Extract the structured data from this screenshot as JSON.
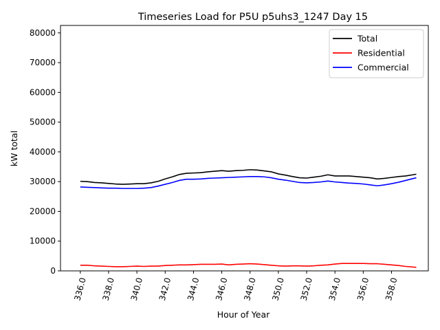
{
  "chart_data": {
    "type": "line",
    "title": "Timeseries Load for P5U p5uhs3_1247  Day 15",
    "xlabel": "Hour of Year",
    "ylabel": "kW total",
    "xlim": [
      334.6,
      360.6
    ],
    "ylim": [
      0,
      82500
    ],
    "xticks": [
      336,
      338,
      340,
      342,
      344,
      346,
      348,
      350,
      352,
      354,
      356,
      358
    ],
    "xtick_labels": [
      "336.0",
      "338.0",
      "340.0",
      "342.0",
      "344.0",
      "346.0",
      "348.0",
      "350.0",
      "352.0",
      "354.0",
      "356.0",
      "358.0"
    ],
    "yticks": [
      0,
      10000,
      20000,
      30000,
      40000,
      50000,
      60000,
      70000,
      80000
    ],
    "ytick_labels": [
      "0",
      "10000",
      "20000",
      "30000",
      "40000",
      "50000",
      "60000",
      "70000",
      "80000"
    ],
    "legend_position": "top-right",
    "x": [
      336.0,
      336.5,
      337.0,
      337.5,
      338.0,
      338.5,
      339.0,
      339.5,
      340.0,
      340.5,
      341.0,
      341.5,
      342.0,
      342.5,
      343.0,
      343.5,
      344.0,
      344.5,
      345.0,
      345.5,
      346.0,
      346.5,
      347.0,
      347.5,
      348.0,
      348.5,
      349.0,
      349.5,
      350.0,
      350.5,
      351.0,
      351.5,
      352.0,
      352.5,
      353.0,
      353.5,
      354.0,
      354.5,
      355.0,
      355.5,
      356.0,
      356.5,
      357.0,
      357.5,
      358.0,
      358.5,
      359.0,
      359.75
    ],
    "series": [
      {
        "name": "Total",
        "color": "#000000",
        "values": [
          30100,
          30000,
          29700,
          29600,
          29400,
          29200,
          29100,
          29200,
          29300,
          29300,
          29600,
          30100,
          30900,
          31600,
          32400,
          32800,
          32900,
          33000,
          33300,
          33500,
          33700,
          33500,
          33700,
          33800,
          34000,
          33900,
          33600,
          33300,
          32600,
          32200,
          31700,
          31300,
          31200,
          31500,
          31800,
          32300,
          31900,
          31900,
          31900,
          31700,
          31500,
          31300,
          30900,
          31100,
          31400,
          31700,
          31900,
          32500
        ]
      },
      {
        "name": "Residential",
        "color": "#ff0000",
        "values": [
          1900,
          1900,
          1700,
          1600,
          1500,
          1400,
          1400,
          1500,
          1600,
          1500,
          1600,
          1600,
          1800,
          1900,
          2000,
          2000,
          2100,
          2200,
          2200,
          2200,
          2300,
          2000,
          2200,
          2300,
          2400,
          2300,
          2100,
          1900,
          1700,
          1600,
          1700,
          1700,
          1600,
          1700,
          1900,
          2000,
          2300,
          2500,
          2500,
          2500,
          2500,
          2400,
          2400,
          2200,
          2000,
          1800,
          1500,
          1200
        ]
      },
      {
        "name": "Commercial",
        "color": "#0000ff",
        "values": [
          28200,
          28100,
          28000,
          27900,
          27800,
          27800,
          27700,
          27700,
          27700,
          27800,
          28000,
          28500,
          29100,
          29700,
          30400,
          30800,
          30800,
          30900,
          31100,
          31200,
          31300,
          31400,
          31500,
          31600,
          31700,
          31700,
          31600,
          31300,
          30800,
          30500,
          30100,
          29700,
          29600,
          29700,
          29900,
          30200,
          29900,
          29700,
          29500,
          29400,
          29200,
          28900,
          28600,
          28900,
          29300,
          29800,
          30400,
          31300
        ]
      }
    ]
  }
}
